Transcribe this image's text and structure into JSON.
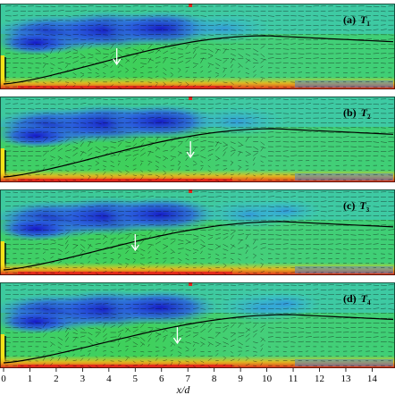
{
  "chart_data": {
    "type": "heatmap",
    "description_kind": "flow-field panels with overlaid vector arrows",
    "xlabel": "x/d",
    "xlim": [
      0,
      14.8
    ],
    "x_ticks": [
      0,
      1,
      2,
      3,
      4,
      5,
      6,
      7,
      8,
      9,
      10,
      11,
      12,
      13,
      14
    ],
    "colors": {
      "low": "#1a1ad6",
      "mid_low": "#2f7ae8",
      "mid": "#39c7d8",
      "mid_high": "#34d23a",
      "high": "#f4e21a",
      "max": "#e3231c",
      "curve": "#000000",
      "marker_arrow": "#ffffff"
    },
    "panels": [
      {
        "label": "(a)",
        "symbol": "T",
        "subscript": "1",
        "marker_x": 4.3
      },
      {
        "label": "(b)",
        "symbol": "T",
        "subscript": "2",
        "marker_x": 7.1
      },
      {
        "label": "(c)",
        "symbol": "T",
        "subscript": "3",
        "marker_x": 5.0
      },
      {
        "label": "(d)",
        "symbol": "T",
        "subscript": "4",
        "marker_x": 6.6
      }
    ]
  }
}
